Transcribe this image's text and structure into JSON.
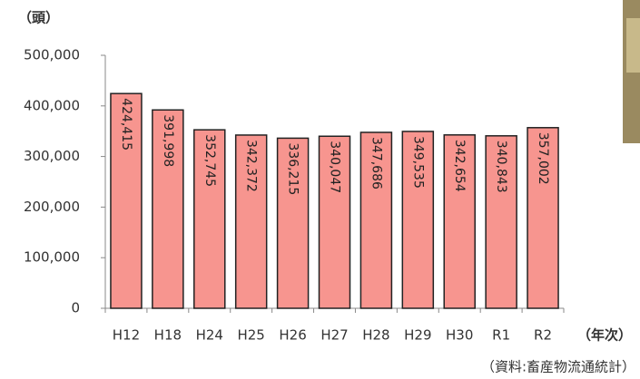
{
  "chart_data": {
    "type": "bar",
    "y_label": "（頭）",
    "x_label": "（年次）",
    "source": "（資料:畜産物流通統計）",
    "categories": [
      "H12",
      "H18",
      "H24",
      "H25",
      "H26",
      "H27",
      "H28",
      "H29",
      "H30",
      "R1",
      "R2"
    ],
    "values": [
      424415,
      391998,
      352745,
      342372,
      336215,
      340047,
      347686,
      349535,
      342654,
      340843,
      357002
    ],
    "value_labels": [
      "424,415",
      "391,998",
      "352,745",
      "342,372",
      "336,215",
      "340,047",
      "347,686",
      "349,535",
      "342,654",
      "340,843",
      "357,002"
    ],
    "color": "#f7958f",
    "ylim": [
      0,
      500000
    ],
    "yticks": [
      0,
      {
        "value": 100000,
        "label": "100,000"
      },
      {
        "value": 200000,
        "label": "200,000"
      },
      {
        "value": 300000,
        "label": "300,000"
      },
      {
        "value": 400000,
        "label": "400,000"
      },
      {
        "value": 500000,
        "label": "500,000"
      }
    ],
    "grid": false
  }
}
